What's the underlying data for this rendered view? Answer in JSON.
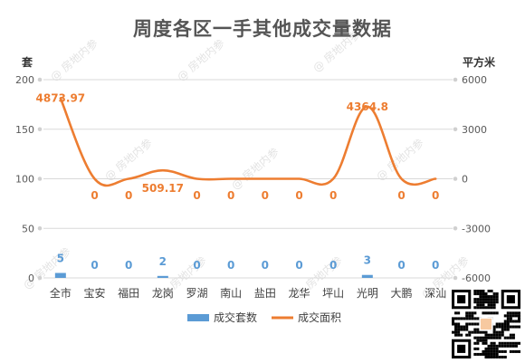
{
  "title": "周度各区一手其他成交量数据",
  "watermark": "房地内参",
  "colors": {
    "bar": "#5b9bd5",
    "line": "#ed7d31",
    "axis_text": "#595959",
    "grid": "#d9d9d9",
    "bar_label": "#5b9bd5",
    "line_label": "#ed7d31"
  },
  "chart_data": {
    "type": "bar",
    "title": "周度各区一手其他成交量数据",
    "categories": [
      "全市",
      "宝安",
      "福田",
      "龙岗",
      "罗湖",
      "南山",
      "盐田",
      "龙华",
      "坪山",
      "光明",
      "大鹏",
      "深汕"
    ],
    "y_left": {
      "unit": "套",
      "ticks": [
        "0",
        "50",
        "100",
        "150",
        "200"
      ],
      "ylim": [
        0,
        200
      ]
    },
    "y_right": {
      "unit": "平方米",
      "ticks": [
        "-6000",
        "-3000",
        "0",
        "3000",
        "6000"
      ],
      "ylim": [
        -6000,
        6000
      ]
    },
    "series": [
      {
        "name": "成交套数",
        "type": "bar",
        "axis": "left",
        "values": [
          5,
          0,
          0,
          2,
          0,
          0,
          0,
          0,
          0,
          3,
          0,
          0
        ],
        "labels": [
          "5",
          "0",
          "0",
          "2",
          "0",
          "0",
          "0",
          "0",
          "0",
          "3",
          "0",
          "0"
        ]
      },
      {
        "name": "成交面积",
        "type": "line",
        "axis": "right",
        "smooth": true,
        "values": [
          4873.97,
          0,
          0,
          509.17,
          0,
          0,
          0,
          0,
          0,
          4364.8,
          0,
          0
        ],
        "labels": [
          "4873.97",
          "0",
          "0",
          "509.17",
          "0",
          "0",
          "0",
          "0",
          "0",
          "4364.8",
          "0",
          "0"
        ]
      }
    ],
    "legend": "bottom",
    "grid": true
  }
}
